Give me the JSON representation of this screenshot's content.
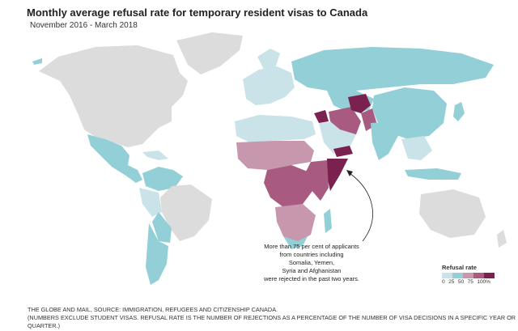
{
  "title": "Monthly average refusal rate for temporary resident visas to Canada",
  "subtitle": "November 2016 - March 2018",
  "annotation": [
    "More than 75 per cent of applicants",
    "from countries including",
    "Somalia, Yemen,",
    "Syria and Afghanistan",
    "were rejected in the past two years."
  ],
  "legend": {
    "title": "Refusal rate",
    "ticks": [
      "0",
      "25",
      "50",
      "75",
      "100%"
    ],
    "colors": [
      "#c9e3e8",
      "#93cfd6",
      "#c797ad",
      "#a85a80",
      "#7a2150"
    ]
  },
  "colors": {
    "no_data": "#dcdcdc",
    "ocean": "#ffffff"
  },
  "source": [
    "THE GLOBE AND MAIL, SOURCE: IMMIGRATION, REFUGEES AND CITIZENSHIP CANADA.",
    "(NUMBERS EXCLUDE STUDENT VISAS. REFUSAL RATE IS THE NUMBER OF REJECTIONS AS A PERCENTAGE OF THE NUMBER OF VISA DECISIONS IN A SPECIFIC YEAR OR QUARTER.)"
  ]
}
